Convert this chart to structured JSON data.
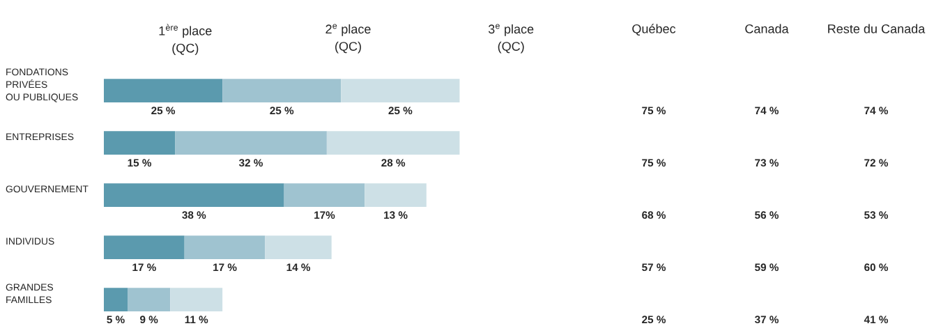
{
  "chart_data": [
    {
      "type": "bar",
      "orientation": "horizontal",
      "stacked": true,
      "categories": [
        "FONDATIONS\nPRIVÉES\nOU PUBLIQUES",
        "ENTREPRISES",
        "GOUVERNEMENT",
        "INDIVIDUS",
        "GRANDES\nFAMILLES"
      ],
      "series": [
        {
          "name": "1$^{ère}$ place\n(QC)",
          "color": "#5b9aae",
          "values": [
            25,
            15,
            38,
            17,
            5
          ],
          "value_labels": [
            "25 %",
            "15 %",
            "38 %",
            "17 %",
            "5 %"
          ]
        },
        {
          "name": "2$^{e}$ place\n(QC)",
          "color": "#9fc3d0",
          "values": [
            25,
            32,
            17,
            17,
            9
          ],
          "value_labels": [
            "25 %",
            "32 %",
            "17%",
            "17 %",
            "9 %"
          ]
        },
        {
          "name": "3$^{e}$ place\n(QC)",
          "color": "#cde0e6",
          "values": [
            25,
            28,
            13,
            14,
            11
          ],
          "value_labels": [
            "25 %",
            "28 %",
            "13 %",
            "14 %",
            "11 %"
          ]
        }
      ]
    },
    {
      "type": "other",
      "title": "Québec",
      "values": [
        75,
        75,
        68,
        57,
        25
      ],
      "value_labels": [
        "75 %",
        "75 %",
        "68 %",
        "57 %",
        "25 %"
      ]
    },
    {
      "type": "other",
      "title": "Canada",
      "values": [
        74,
        73,
        56,
        59,
        37
      ],
      "value_labels": [
        "74 %",
        "73 %",
        "56 %",
        "59 %",
        "37 %"
      ]
    },
    {
      "type": "other",
      "title": "Reste du Canada",
      "values": [
        74,
        72,
        53,
        60,
        41
      ],
      "value_labels": [
        "74 %",
        "72 %",
        "53 %",
        "60 %",
        "41 %"
      ]
    }
  ]
}
